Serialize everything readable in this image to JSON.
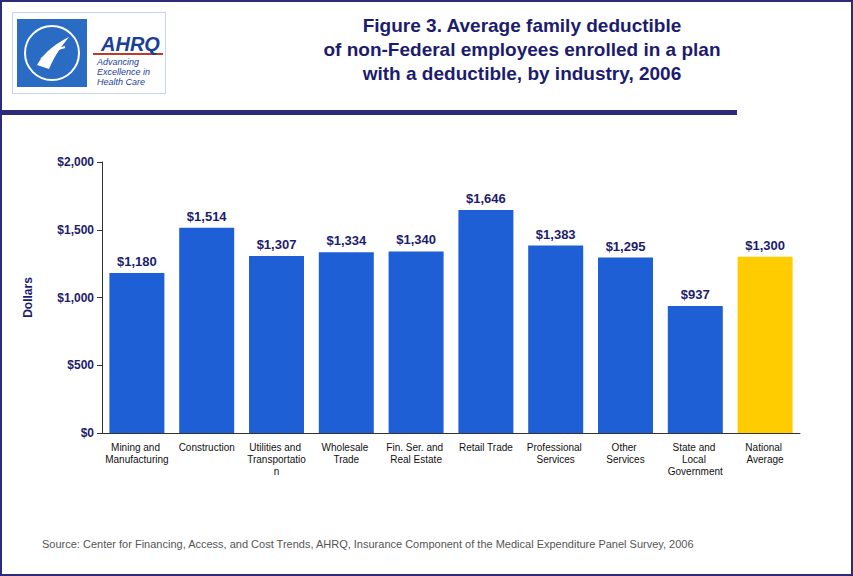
{
  "chart_data": {
    "type": "bar",
    "title": "Figure 3. Average family deductible\nof non-Federal employees enrolled in a plan\nwith a deductible, by industry, 2006",
    "y_label": "Dollars",
    "source": "Source: Center for Financing, Access, and Cost Trends, AHRQ, Insurance Component of the Medical Expenditure Panel Survey, 2006",
    "logo": {
      "name": "AHRQ",
      "tagline": "Advancing Excellence in Health Care"
    },
    "categories": [
      "Mining and Manufacturing",
      "Construction",
      "Utilities and Transportation",
      "Wholesale Trade",
      "Fin. Ser. and Real Estate",
      "Retail Trade",
      "Professional Services",
      "Other Services",
      "State and Local Government",
      "National Average"
    ],
    "values": [
      1180,
      1514,
      1307,
      1334,
      1340,
      1646,
      1383,
      1295,
      937,
      1300
    ],
    "value_labels": [
      "$1,180",
      "$1,514",
      "$1,307",
      "$1,334",
      "$1,340",
      "$1,646",
      "$1,383",
      "$1,295",
      "$937",
      "$1,300"
    ],
    "colors": [
      "#1f5fd6",
      "#1f5fd6",
      "#1f5fd6",
      "#1f5fd6",
      "#1f5fd6",
      "#1f5fd6",
      "#1f5fd6",
      "#1f5fd6",
      "#1f5fd6",
      "#ffcc00"
    ],
    "ylim": [
      0,
      2000
    ],
    "yticks": [
      {
        "value": 0,
        "label": "$0"
      },
      {
        "value": 500,
        "label": "$500"
      },
      {
        "value": 1000,
        "label": "$1,000"
      },
      {
        "value": 1500,
        "label": "$1,500"
      },
      {
        "value": 2000,
        "label": "$2,000"
      }
    ],
    "grid": false,
    "data_labels": true
  }
}
